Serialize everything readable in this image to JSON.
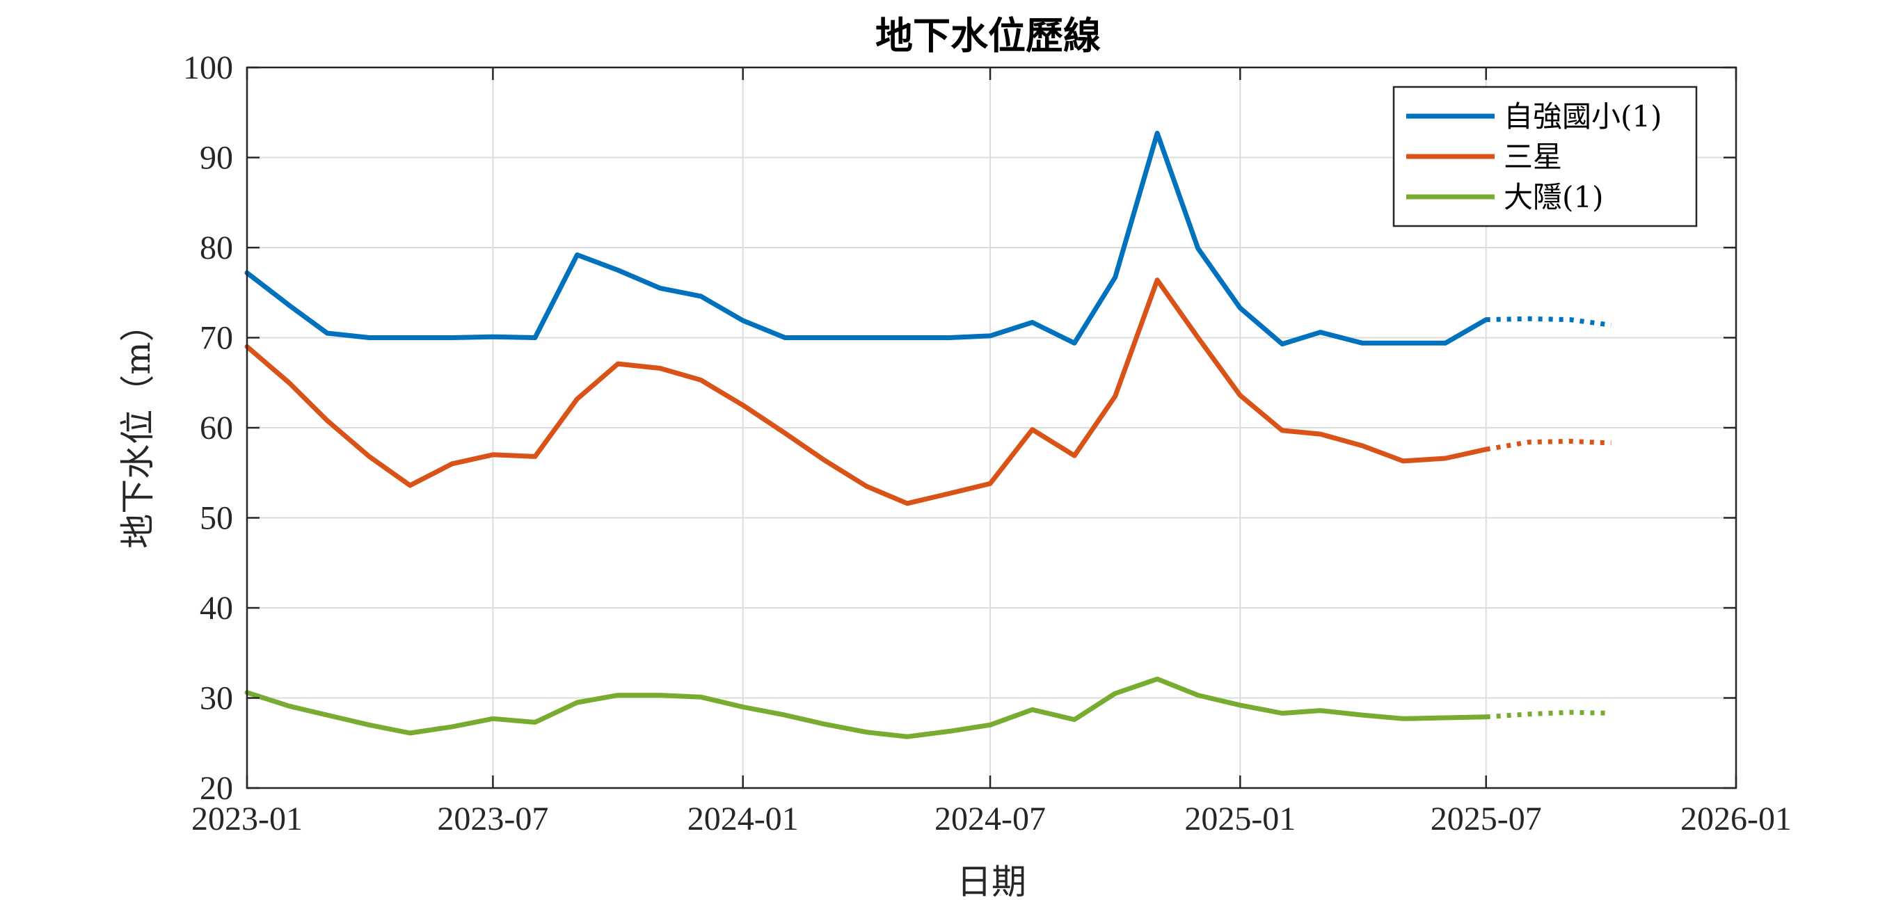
{
  "chart_data": {
    "type": "line",
    "title": "地下水位歷線",
    "xlabel": "日期",
    "ylabel": "地下水位（m）",
    "xlim": [
      "2023-01-01",
      "2026-01-01"
    ],
    "ylim": [
      20,
      100
    ],
    "xticks": [
      "2023-01",
      "2023-07",
      "2024-01",
      "2024-07",
      "2025-01",
      "2025-07",
      "2026-01"
    ],
    "yticks": [
      20,
      30,
      40,
      50,
      60,
      70,
      80,
      90,
      100
    ],
    "grid": true,
    "legend_position": "top-right",
    "series": [
      {
        "name": "自強國小(1)",
        "color": "#0072BD",
        "observed": [
          [
            "2023-01-01",
            77.2
          ],
          [
            "2023-02-01",
            73.6
          ],
          [
            "2023-03-01",
            70.5
          ],
          [
            "2023-04-01",
            70.0
          ],
          [
            "2023-05-01",
            70.0
          ],
          [
            "2023-06-01",
            70.0
          ],
          [
            "2023-07-01",
            70.1
          ],
          [
            "2023-08-01",
            70.0
          ],
          [
            "2023-09-01",
            79.2
          ],
          [
            "2023-10-01",
            77.5
          ],
          [
            "2023-11-01",
            75.5
          ],
          [
            "2023-12-01",
            74.6
          ],
          [
            "2024-01-01",
            71.9
          ],
          [
            "2024-02-01",
            70.0
          ],
          [
            "2024-03-01",
            70.0
          ],
          [
            "2024-04-01",
            70.0
          ],
          [
            "2024-05-01",
            70.0
          ],
          [
            "2024-06-01",
            70.0
          ],
          [
            "2024-07-01",
            70.2
          ],
          [
            "2024-08-01",
            71.7
          ],
          [
            "2024-09-01",
            69.4
          ],
          [
            "2024-10-01",
            76.7
          ],
          [
            "2024-11-01",
            92.7
          ],
          [
            "2024-12-01",
            79.9
          ],
          [
            "2025-01-01",
            73.3
          ],
          [
            "2025-02-01",
            69.3
          ],
          [
            "2025-03-01",
            70.6
          ],
          [
            "2025-04-01",
            69.4
          ],
          [
            "2025-05-01",
            69.4
          ],
          [
            "2025-06-01",
            69.4
          ],
          [
            "2025-07-01",
            72.0
          ]
        ],
        "forecast": [
          [
            "2025-07-01",
            72.0
          ],
          [
            "2025-08-01",
            72.1
          ],
          [
            "2025-09-01",
            72.0
          ],
          [
            "2025-10-01",
            71.4
          ]
        ]
      },
      {
        "name": "三星",
        "color": "#D95319",
        "observed": [
          [
            "2023-01-01",
            69.0
          ],
          [
            "2023-02-01",
            65.0
          ],
          [
            "2023-03-01",
            60.8
          ],
          [
            "2023-04-01",
            56.8
          ],
          [
            "2023-05-01",
            53.6
          ],
          [
            "2023-06-01",
            56.0
          ],
          [
            "2023-07-01",
            57.0
          ],
          [
            "2023-08-01",
            56.8
          ],
          [
            "2023-09-01",
            63.2
          ],
          [
            "2023-10-01",
            67.1
          ],
          [
            "2023-11-01",
            66.6
          ],
          [
            "2023-12-01",
            65.3
          ],
          [
            "2024-01-01",
            62.5
          ],
          [
            "2024-02-01",
            59.4
          ],
          [
            "2024-03-01",
            56.4
          ],
          [
            "2024-04-01",
            53.5
          ],
          [
            "2024-05-01",
            51.6
          ],
          [
            "2024-06-01",
            52.7
          ],
          [
            "2024-07-01",
            53.8
          ],
          [
            "2024-08-01",
            59.8
          ],
          [
            "2024-09-01",
            56.9
          ],
          [
            "2024-10-01",
            63.5
          ],
          [
            "2024-11-01",
            76.4
          ],
          [
            "2024-12-01",
            70.0
          ],
          [
            "2025-01-01",
            63.6
          ],
          [
            "2025-02-01",
            59.7
          ],
          [
            "2025-03-01",
            59.3
          ],
          [
            "2025-04-01",
            58.0
          ],
          [
            "2025-05-01",
            56.3
          ],
          [
            "2025-06-01",
            56.6
          ],
          [
            "2025-07-01",
            57.6
          ]
        ],
        "forecast": [
          [
            "2025-07-01",
            57.6
          ],
          [
            "2025-08-01",
            58.4
          ],
          [
            "2025-09-01",
            58.5
          ],
          [
            "2025-10-01",
            58.3
          ]
        ]
      },
      {
        "name": "大隱(1)",
        "color": "#77AC30",
        "observed": [
          [
            "2023-01-01",
            30.6
          ],
          [
            "2023-02-01",
            29.1
          ],
          [
            "2023-03-01",
            28.1
          ],
          [
            "2023-04-01",
            27.0
          ],
          [
            "2023-05-01",
            26.1
          ],
          [
            "2023-06-01",
            26.8
          ],
          [
            "2023-07-01",
            27.7
          ],
          [
            "2023-08-01",
            27.3
          ],
          [
            "2023-09-01",
            29.5
          ],
          [
            "2023-10-01",
            30.3
          ],
          [
            "2023-11-01",
            30.3
          ],
          [
            "2023-12-01",
            30.1
          ],
          [
            "2024-01-01",
            29.0
          ],
          [
            "2024-02-01",
            28.1
          ],
          [
            "2024-03-01",
            27.1
          ],
          [
            "2024-04-01",
            26.2
          ],
          [
            "2024-05-01",
            25.7
          ],
          [
            "2024-06-01",
            26.3
          ],
          [
            "2024-07-01",
            27.0
          ],
          [
            "2024-08-01",
            28.7
          ],
          [
            "2024-09-01",
            27.6
          ],
          [
            "2024-10-01",
            30.5
          ],
          [
            "2024-11-01",
            32.1
          ],
          [
            "2024-12-01",
            30.3
          ],
          [
            "2025-01-01",
            29.2
          ],
          [
            "2025-02-01",
            28.3
          ],
          [
            "2025-03-01",
            28.6
          ],
          [
            "2025-04-01",
            28.1
          ],
          [
            "2025-05-01",
            27.7
          ],
          [
            "2025-06-01",
            27.8
          ],
          [
            "2025-07-01",
            27.9
          ]
        ],
        "forecast": [
          [
            "2025-07-01",
            27.9
          ],
          [
            "2025-08-01",
            28.2
          ],
          [
            "2025-09-01",
            28.4
          ],
          [
            "2025-10-01",
            28.3
          ]
        ]
      }
    ]
  }
}
